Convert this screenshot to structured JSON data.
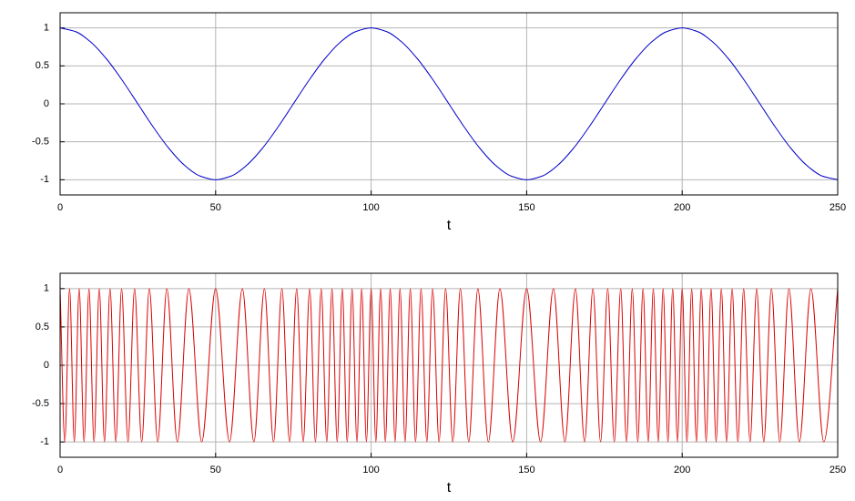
{
  "chart_data": [
    {
      "type": "line",
      "xlabel": "t",
      "xlim": [
        0,
        250
      ],
      "ylim": [
        -1.2,
        1.2
      ],
      "xticks": [
        0,
        50,
        100,
        150,
        200,
        250
      ],
      "yticks": [
        -1,
        -0.5,
        0,
        0.5,
        1
      ],
      "grid": true,
      "x": [
        0,
        5,
        10,
        15,
        20,
        25,
        30,
        35,
        40,
        45,
        50,
        55,
        60,
        65,
        70,
        75,
        80,
        85,
        90,
        95,
        100,
        105,
        110,
        115,
        120,
        125,
        130,
        135,
        140,
        145,
        150,
        155,
        160,
        165,
        170,
        175,
        180,
        185,
        190,
        195,
        200,
        205,
        210,
        215,
        220,
        225,
        230,
        235,
        240,
        245,
        250
      ],
      "color": "#0000c8",
      "values": [
        1,
        0.951,
        0.809,
        0.588,
        0.309,
        0,
        -0.309,
        -0.588,
        -0.809,
        -0.951,
        -1,
        -0.951,
        -0.809,
        -0.588,
        -0.309,
        0,
        0.309,
        0.588,
        0.809,
        0.951,
        1,
        0.951,
        0.809,
        0.588,
        0.309,
        0,
        -0.309,
        -0.588,
        -0.809,
        -0.951,
        -1,
        -0.951,
        -0.809,
        -0.588,
        -0.309,
        0,
        0.309,
        0.588,
        0.809,
        0.951,
        1,
        0.951,
        0.809,
        0.588,
        0.309,
        0,
        -0.309,
        -0.588,
        -0.809,
        -0.951,
        -1
      ]
    },
    {
      "type": "line",
      "xlabel": "t",
      "xlim": [
        0,
        250
      ],
      "ylim": [
        -1.2,
        1.2
      ],
      "xticks": [
        0,
        50,
        100,
        150,
        200,
        250
      ],
      "yticks": [
        -1,
        -0.5,
        0,
        0.5,
        1
      ],
      "grid": true,
      "x": [
        0,
        1.52,
        3.05,
        4.57,
        6.13,
        7.7,
        9.28,
        10.91,
        12.59,
        14.27,
        16.05,
        17.91,
        19.76,
        21.83,
        23.94,
        26.23,
        28.69,
        31.38,
        34.32,
        37.69,
        41.4,
        45.53,
        50,
        54.47,
        58.6,
        62.31,
        65.68,
        68.62,
        71.31,
        73.77,
        76.06,
        78.17,
        80.24,
        82.09,
        83.95,
        85.73,
        87.41,
        89.09,
        90.72,
        92.3,
        93.87,
        95.43,
        96.95,
        98.48,
        100,
        101.52,
        103.05,
        104.57,
        106.13,
        107.7,
        109.28,
        110.91,
        112.59,
        114.27,
        116.05,
        117.91,
        119.76,
        121.83,
        123.94,
        126.23,
        128.69,
        131.38,
        134.32,
        137.69,
        141.4,
        145.53,
        150,
        154.47,
        158.6,
        162.31,
        165.68,
        168.62,
        171.31,
        173.77,
        176.06,
        178.17,
        180.24,
        182.09,
        183.95,
        185.73,
        187.41,
        189.09,
        190.72,
        192.3,
        193.87,
        195.43,
        196.95,
        198.48,
        200,
        201.52,
        203.05,
        204.57,
        206.13,
        207.7,
        209.28,
        210.91,
        212.59,
        214.27,
        216.05,
        217.91,
        219.76,
        221.83,
        223.94,
        226.23,
        228.69,
        231.38,
        234.32,
        237.69,
        241.4,
        245.53,
        250
      ],
      "color": "#dc0000",
      "values": [
        1,
        -1,
        1,
        -1,
        1,
        -1,
        1,
        -1,
        1,
        -1,
        1,
        -1,
        1,
        -1,
        1,
        -1,
        1,
        -1,
        1,
        -1,
        1,
        -1,
        1,
        -1,
        1,
        -1,
        1,
        -1,
        1,
        -1,
        1,
        -1,
        1,
        -1,
        1,
        -1,
        1,
        -1,
        1,
        -1,
        1,
        -1,
        1,
        -1,
        1,
        -1,
        1,
        -1,
        1,
        -1,
        1,
        -1,
        1,
        -1,
        1,
        -1,
        1,
        -1,
        1,
        -1,
        1,
        -1,
        1,
        -1,
        1,
        -1,
        1,
        -1,
        1,
        -1,
        1,
        -1,
        1,
        -1,
        1,
        -1,
        1,
        -1,
        1,
        -1,
        1,
        -1,
        1,
        -1,
        1,
        -1,
        1,
        -1,
        1,
        -1,
        1,
        -1,
        1,
        -1,
        1,
        -1,
        1,
        -1,
        1,
        -1,
        1,
        -1,
        1,
        -1,
        1,
        -1,
        1,
        -1,
        1,
        -1,
        1
      ]
    }
  ]
}
